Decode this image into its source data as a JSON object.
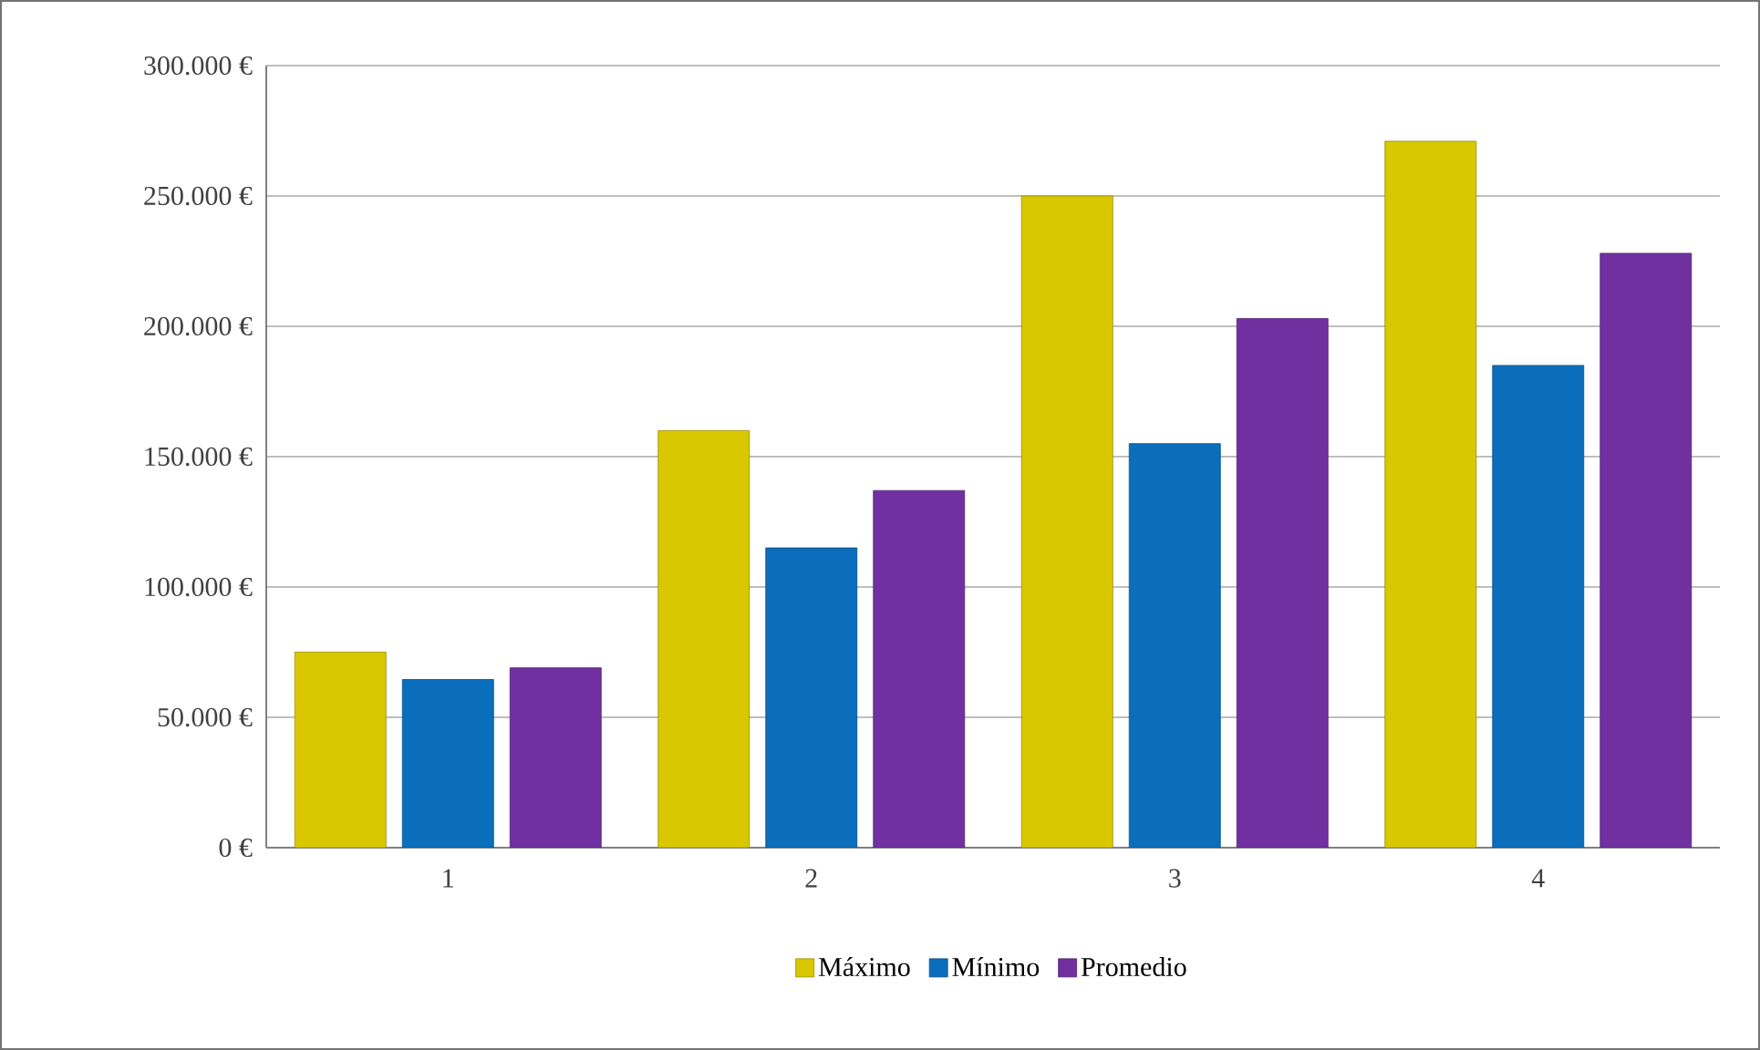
{
  "chart_data": {
    "type": "bar",
    "categories": [
      "1",
      "2",
      "3",
      "4"
    ],
    "series": [
      {
        "name": "Máximo",
        "color": "#d9c800",
        "values": [
          75000,
          160000,
          250000,
          271000
        ]
      },
      {
        "name": "Mínimo",
        "color": "#0a6ebd",
        "values": [
          64500,
          115000,
          155000,
          185000
        ]
      },
      {
        "name": "Promedio",
        "color": "#7030a0",
        "values": [
          69000,
          137000,
          203000,
          228000
        ]
      }
    ],
    "ylim": [
      0,
      300000
    ],
    "yticks": [
      {
        "value": 0,
        "label": "0 €"
      },
      {
        "value": 50000,
        "label": "50.000 €"
      },
      {
        "value": 100000,
        "label": "100.000 €"
      },
      {
        "value": 150000,
        "label": "150.000 €"
      },
      {
        "value": 200000,
        "label": "200.000 €"
      },
      {
        "value": 250000,
        "label": "250.000 €"
      },
      {
        "value": 300000,
        "label": "300.000 €"
      }
    ],
    "grid": "y",
    "legend": "bottom"
  }
}
